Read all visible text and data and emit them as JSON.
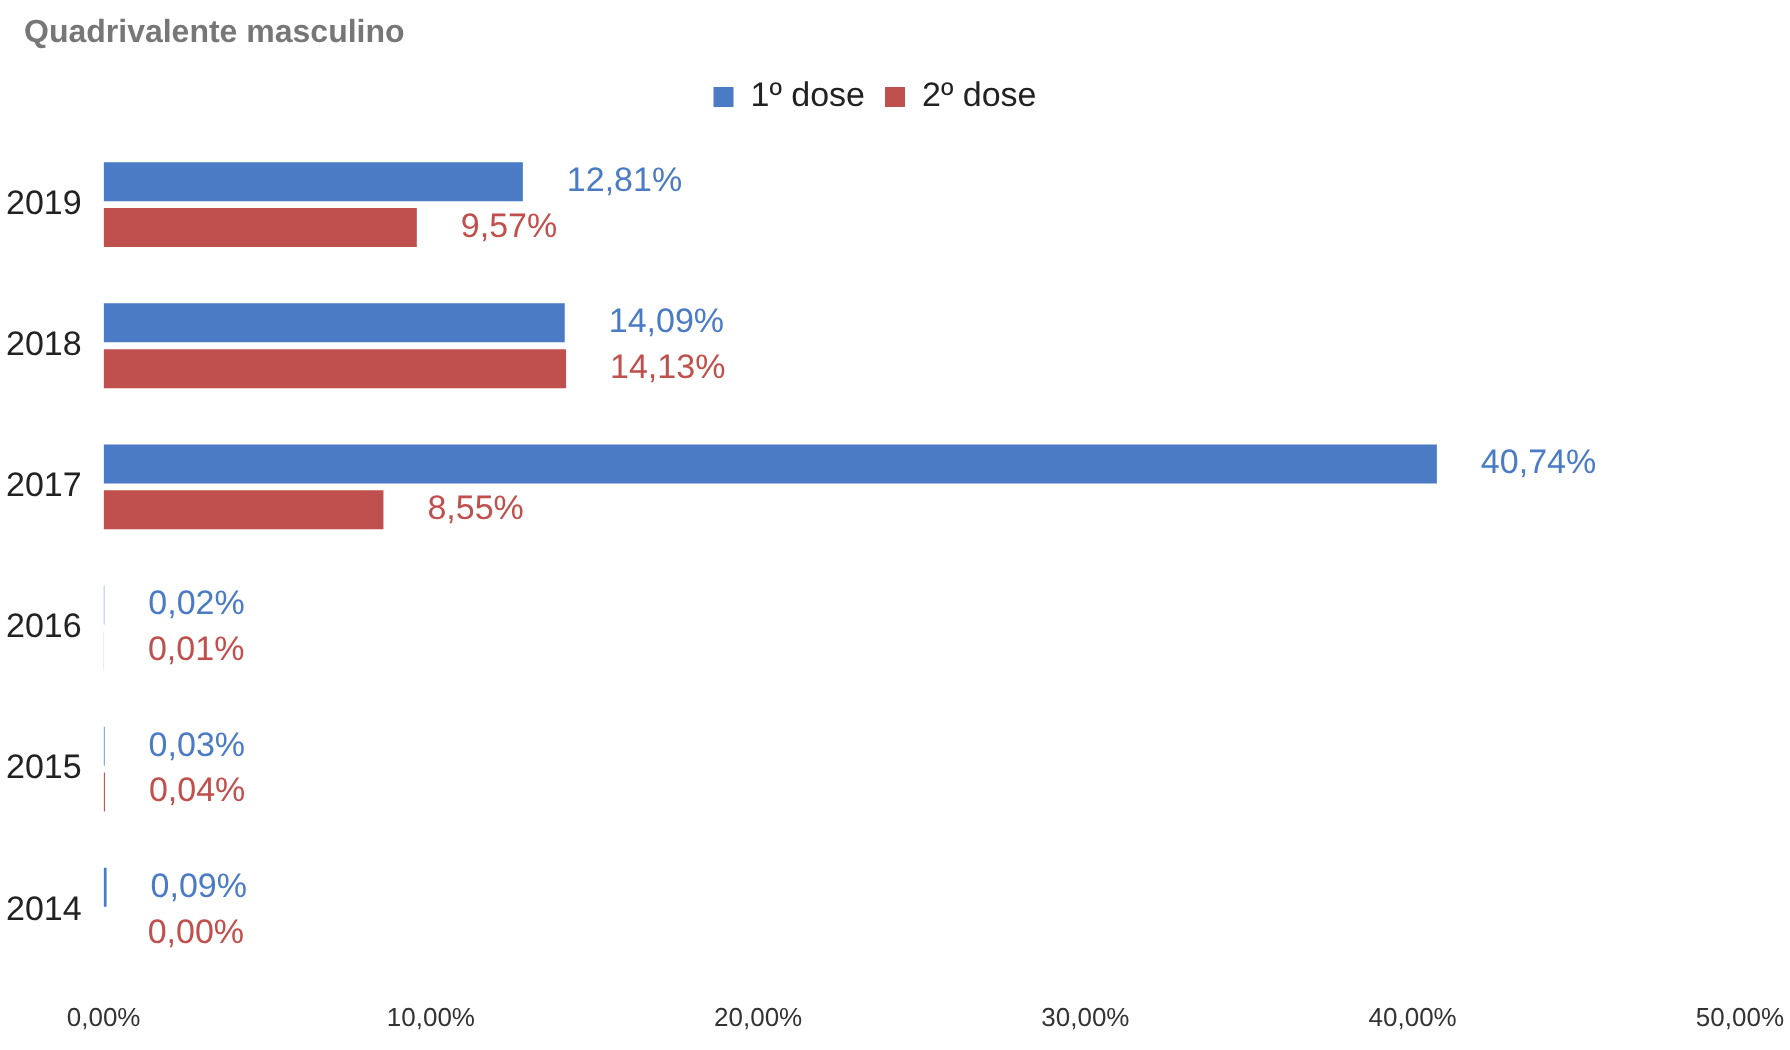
{
  "chart_data": {
    "type": "bar",
    "orientation": "horizontal",
    "title": "Quadrivalente masculino",
    "categories": [
      "2019",
      "2018",
      "2017",
      "2016",
      "2015",
      "2014"
    ],
    "series": [
      {
        "name": "1º dose",
        "color": "#4a7bc4",
        "values": [
          12.81,
          14.09,
          40.74,
          0.02,
          0.03,
          0.09
        ],
        "value_labels": [
          "12,81%",
          "14,09%",
          "40,74%",
          "0,02%",
          "0,03%",
          "0,09%"
        ]
      },
      {
        "name": "2º dose",
        "color": "#c0504d",
        "values": [
          9.57,
          14.13,
          8.55,
          0.01,
          0.04,
          0.0
        ],
        "value_labels": [
          "9,57%",
          "14,13%",
          "8,55%",
          "0,01%",
          "0,04%",
          "0,00%"
        ]
      }
    ],
    "xlim": [
      0,
      50
    ],
    "xticks": [
      {
        "value": 0,
        "label": "0,00%"
      },
      {
        "value": 10,
        "label": "10,00%"
      },
      {
        "value": 20,
        "label": "20,00%"
      },
      {
        "value": 30,
        "label": "30,00%"
      },
      {
        "value": 40,
        "label": "40,00%"
      },
      {
        "value": 50,
        "label": "50,00%"
      }
    ],
    "grid": false,
    "legend": "top"
  }
}
